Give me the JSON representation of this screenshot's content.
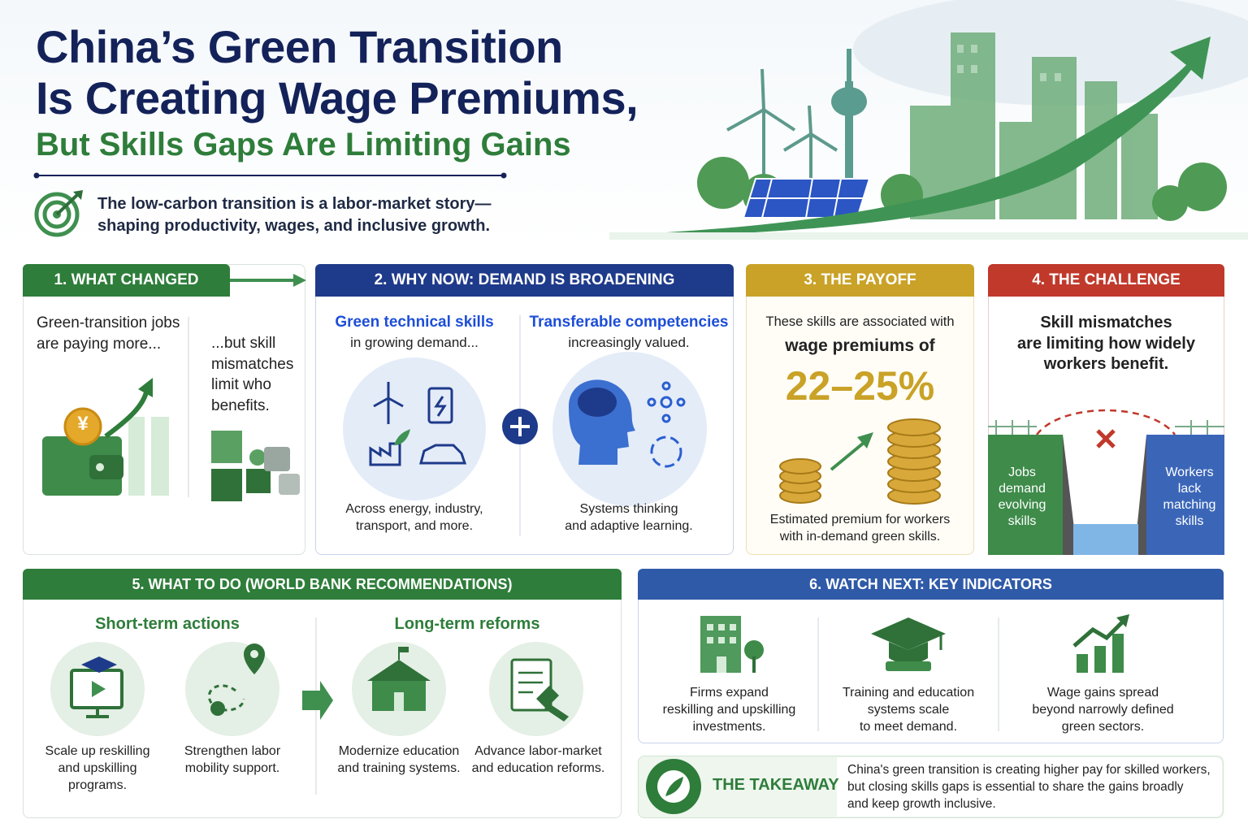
{
  "header": {
    "title": [
      "China’s Green Transition",
      "Is Creating Wage Premiums,"
    ],
    "subtitle": "But Skills Gaps Are Limiting Gains",
    "tagline": [
      "The low-carbon transition is a labor-market story—",
      "shaping productivity, wages, and inclusive growth."
    ]
  },
  "what_changed": {
    "heading": "1. WHAT CHANGED",
    "jobs_text": [
      "Green-transition jobs",
      "are paying more..."
    ],
    "mismatch_text": [
      "...but skill",
      "mismatches",
      "limit who",
      "benefits."
    ],
    "currency": "¥"
  },
  "why_now": {
    "heading": "2. WHY NOW: DEMAND IS BROADENING",
    "technical": {
      "title": "Green technical skills",
      "text": "in growing demand...",
      "caption": [
        "Across energy, industry,",
        "transport, and more."
      ]
    },
    "transferable": {
      "title": "Transferable competencies",
      "text": "increasingly valued.",
      "caption": [
        "Systems thinking",
        "and adaptive learning."
      ]
    }
  },
  "payoff": {
    "heading": "3. THE PAYOFF",
    "intro": "These skills are associated with",
    "emphasis": "wage premiums of",
    "premium": "22–25%",
    "caption": [
      "Estimated premium for workers",
      "with in-demand green skills."
    ]
  },
  "challenge": {
    "heading": "4. THE CHALLENGE",
    "text": [
      "Skill mismatches",
      "are limiting how widely",
      "workers benefit."
    ],
    "left_label": [
      "Jobs",
      "demand",
      "evolving",
      "skills"
    ],
    "right_label": [
      "Workers",
      "lack",
      "matching",
      "skills"
    ]
  },
  "what_to_do": {
    "heading": "5. WHAT TO DO (WORLD BANK RECOMMENDATIONS)",
    "groups": [
      {
        "title": "Short-term actions",
        "actions": [
          [
            "Scale up reskilling",
            "and upskilling",
            "programs."
          ],
          [
            "Strengthen labor",
            "mobility support."
          ]
        ]
      },
      {
        "title": "Long-term reforms",
        "actions": [
          [
            "Modernize education",
            "and training systems."
          ],
          [
            "Advance labor-market",
            "and education reforms."
          ]
        ]
      }
    ]
  },
  "watch_next": {
    "heading": "6. WATCH NEXT: KEY INDICATORS",
    "indicators": [
      [
        "Firms expand",
        "reskilling and upskilling",
        "investments."
      ],
      [
        "Training and education",
        "systems scale",
        "to meet demand."
      ],
      [
        "Wage gains spread",
        "beyond narrowly defined",
        "green sectors."
      ]
    ]
  },
  "takeaway": {
    "label": "THE TAKEAWAY",
    "text": [
      "China's green transition is creating higher pay for skilled workers,",
      "but closing skills gaps is essential to share the gains broadly",
      "and keep growth inclusive."
    ]
  }
}
